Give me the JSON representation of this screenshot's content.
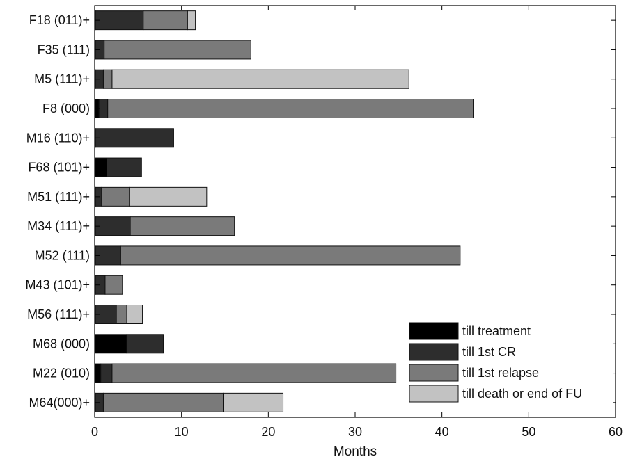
{
  "chart_data": {
    "type": "bar",
    "orientation": "horizontal",
    "stacked": true,
    "title": "",
    "xlabel": "Months",
    "ylabel": "",
    "xlim": [
      0,
      60
    ],
    "xticks": [
      0,
      10,
      20,
      30,
      40,
      50,
      60
    ],
    "grid": false,
    "legend_position": "bottom-right",
    "categories": [
      "F18 (011)+",
      "F35 (111)",
      "M5 (111)+",
      "F8 (000)",
      "M16 (110)+",
      "F68 (101)+",
      "M51 (111)+",
      "M34 (111)+",
      "M52 (111)",
      "M43 (101)+",
      "M56 (111)+",
      "M68 (000)",
      "M22 (010)",
      "M64(000)+"
    ],
    "series": [
      {
        "name": "till treatment",
        "color": "#000000",
        "values": [
          0.1,
          0.1,
          0.1,
          0.5,
          0.1,
          1.4,
          0.1,
          0.1,
          0.1,
          0.1,
          0.1,
          3.7,
          0.7,
          0.1
        ]
      },
      {
        "name": "till 1st CR",
        "color": "#2d2d2d",
        "values": [
          5.5,
          1.0,
          0.9,
          1.0,
          9.0,
          4.0,
          0.7,
          4.0,
          2.9,
          1.1,
          2.4,
          4.2,
          1.3,
          0.9
        ]
      },
      {
        "name": "till 1st relapse",
        "color": "#7a7a7a",
        "values": [
          5.1,
          16.9,
          1.0,
          42.1,
          0,
          0,
          3.2,
          12.0,
          39.1,
          2.0,
          1.2,
          0,
          32.7,
          13.8
        ]
      },
      {
        "name": "till death or end of FU",
        "color": "#c2c2c2",
        "values": [
          0.9,
          0,
          34.2,
          0,
          0,
          0,
          8.9,
          0,
          0,
          0,
          1.8,
          0,
          0,
          6.9
        ]
      }
    ]
  }
}
